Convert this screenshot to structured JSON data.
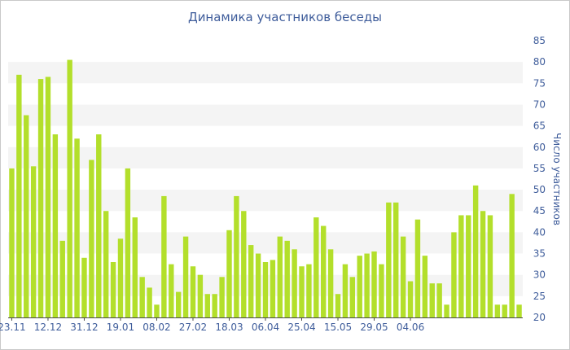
{
  "chart_data": {
    "type": "bar",
    "title": "Динамика участников беседы",
    "ylabel": "Число участников",
    "xlabel": "",
    "ylim": [
      20,
      85
    ],
    "yticks": [
      20,
      25,
      30,
      35,
      40,
      45,
      50,
      55,
      60,
      65,
      70,
      75,
      80,
      85
    ],
    "y_axis_side": "right",
    "grid": "alternating horizontal bands",
    "bar_color": "#b3df2b",
    "band_color": "#f4f4f4",
    "text_color": "#3f5d9b",
    "xtick_labels": [
      {
        "label": "23.11",
        "index": 0
      },
      {
        "label": "12.12",
        "index": 5
      },
      {
        "label": "31.12",
        "index": 10
      },
      {
        "label": "19.01",
        "index": 15
      },
      {
        "label": "08.02",
        "index": 20
      },
      {
        "label": "27.02",
        "index": 25
      },
      {
        "label": "18.03",
        "index": 30
      },
      {
        "label": "06.04",
        "index": 35
      },
      {
        "label": "25.04",
        "index": 40
      },
      {
        "label": "15.05",
        "index": 45
      },
      {
        "label": "29.05",
        "index": 50
      },
      {
        "label": "04.06",
        "index": 55
      }
    ],
    "values": [
      55,
      77,
      67.5,
      55.5,
      76,
      76.5,
      63,
      38,
      80.5,
      62,
      34,
      57,
      63,
      45,
      33,
      38.5,
      55,
      43.5,
      29.5,
      27,
      23,
      48.5,
      32.5,
      26,
      39,
      32,
      30,
      25.5,
      25.5,
      29.5,
      40.5,
      48.5,
      45,
      37,
      35,
      33,
      33.5,
      39,
      38,
      36,
      32,
      32.5,
      43.5,
      41.5,
      36,
      25.5,
      32.5,
      29.5,
      34.5,
      35,
      35.5,
      32.5,
      47,
      47,
      39,
      28.5,
      43,
      34.5,
      28,
      28,
      23,
      40,
      44,
      44,
      51,
      45,
      44,
      23,
      23,
      49,
      23
    ]
  }
}
